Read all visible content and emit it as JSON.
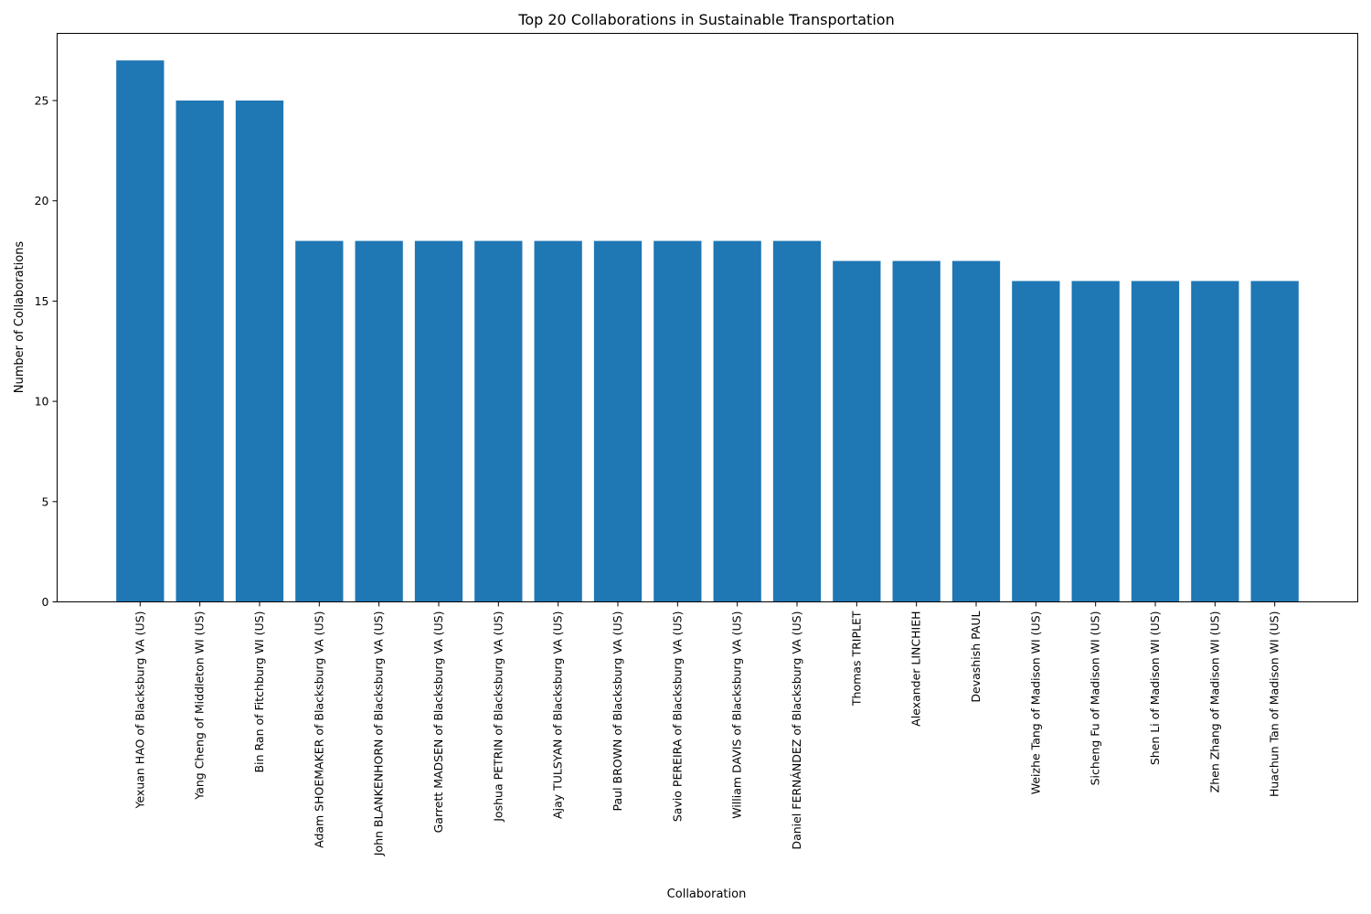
{
  "chart_data": {
    "type": "bar",
    "title": "Top 20 Collaborations in Sustainable Transportation",
    "xlabel": "Collaboration",
    "ylabel": "Number of Collaborations",
    "ylim": [
      0,
      28.35
    ],
    "yticks": [
      0,
      5,
      10,
      15,
      20,
      25
    ],
    "grid": false,
    "legend": "none",
    "bar_color": "#1f77b4",
    "categories": [
      "Yexuan HAO of Blacksburg VA (US)",
      "Yang Cheng of Middleton WI (US)",
      "Bin Ran of Fitchburg WI (US)",
      "Adam SHOEMAKER of Blacksburg VA (US)",
      "John BLANKENHORN of Blacksburg VA (US)",
      "Garrett MADSEN of Blacksburg VA (US)",
      "Joshua PETRIN of Blacksburg VA (US)",
      "Ajay TULSYAN of Blacksburg VA (US)",
      "Paul BROWN of Blacksburg VA (US)",
      "Savio PEREIRA of Blacksburg VA (US)",
      "William DAVIS of Blacksburg VA (US)",
      "Daniel FERNÁNDEZ of Blacksburg VA (US)",
      "Thomas TRIPLET",
      "Alexander LINCHIEH",
      "Devashish PAUL",
      "Weizhe Tang of Madison WI (US)",
      "Sicheng Fu of Madison WI (US)",
      "Shen Li of Madison WI (US)",
      "Zhen Zhang of Madison WI (US)",
      "Huachun Tan of Madison WI (US)"
    ],
    "values": [
      27,
      25,
      25,
      18,
      18,
      18,
      18,
      18,
      18,
      18,
      18,
      18,
      17,
      17,
      17,
      16,
      16,
      16,
      16,
      16
    ]
  }
}
